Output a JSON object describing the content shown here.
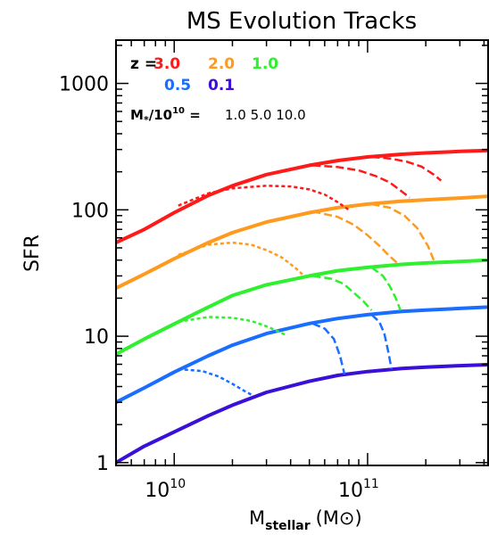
{
  "chart_data": {
    "type": "line",
    "title": "MS Evolution Tracks",
    "xlabel_main": "M",
    "xlabel_sub": "stellar",
    "xlabel_unit": "(M",
    "xlabel_close": ")",
    "ylabel": "SFR",
    "x_scale": "log",
    "y_scale": "log",
    "xlim": [
      5000000000.0,
      420000000000.0
    ],
    "ylim": [
      0.95,
      2200
    ],
    "x_ticks": [
      {
        "value": 10000000000.0,
        "base": "10",
        "exp": "10"
      },
      {
        "value": 100000000000.0,
        "base": "10",
        "exp": "11"
      }
    ],
    "y_ticks": [
      {
        "value": 1,
        "label": "1"
      },
      {
        "value": 10,
        "label": "10"
      },
      {
        "value": 100,
        "label": "100"
      },
      {
        "value": 1000,
        "label": "1000"
      }
    ],
    "legend": {
      "z_prefix": "z =",
      "redshifts": [
        {
          "label": "3.0",
          "color": "#ff1a1a"
        },
        {
          "label": "2.0",
          "color": "#ff9a1e"
        },
        {
          "label": "1.0",
          "color": "#2ef02e"
        },
        {
          "label": "0.5",
          "color": "#1a6eff"
        },
        {
          "label": "0.1",
          "color": "#3a10d8"
        }
      ],
      "mass_prefix_main": "M",
      "mass_prefix_sub": "*",
      "mass_prefix_rest": "/10",
      "mass_prefix_exp": "10",
      "mass_prefix_eq": " =",
      "mass_values": "1.0  5.0  10.0"
    },
    "series": [
      {
        "z": "3.0",
        "color": "#ff1a1a",
        "style": "solid",
        "x": [
          5000000000.0,
          7000000000.0,
          10000000000.0,
          15000000000.0,
          20000000000.0,
          30000000000.0,
          50000000000.0,
          70000000000.0,
          100000000000.0,
          150000000000.0,
          200000000000.0,
          300000000000.0,
          420000000000.0
        ],
        "y": [
          55,
          70,
          95,
          130,
          155,
          190,
          225,
          245,
          262,
          275,
          282,
          290,
          295
        ]
      },
      {
        "z": "2.0",
        "color": "#ff9a1e",
        "style": "solid",
        "x": [
          5000000000.0,
          7000000000.0,
          10000000000.0,
          15000000000.0,
          20000000000.0,
          30000000000.0,
          50000000000.0,
          70000000000.0,
          100000000000.0,
          150000000000.0,
          200000000000.0,
          300000000000.0,
          420000000000.0
        ],
        "y": [
          24,
          31,
          41,
          55,
          66,
          80,
          95,
          104,
          111,
          117,
          120,
          124,
          128
        ]
      },
      {
        "z": "1.0",
        "color": "#2ef02e",
        "style": "solid",
        "x": [
          5000000000.0,
          7000000000.0,
          10000000000.0,
          15000000000.0,
          20000000000.0,
          30000000000.0,
          50000000000.0,
          70000000000.0,
          100000000000.0,
          150000000000.0,
          200000000000.0,
          300000000000.0,
          420000000000.0
        ],
        "y": [
          7.2,
          9.5,
          12.5,
          17,
          21,
          25.5,
          30,
          33,
          35,
          37,
          38,
          39,
          40
        ]
      },
      {
        "z": "0.5",
        "color": "#1a6eff",
        "style": "solid",
        "x": [
          5000000000.0,
          7000000000.0,
          10000000000.0,
          15000000000.0,
          20000000000.0,
          30000000000.0,
          50000000000.0,
          70000000000.0,
          100000000000.0,
          150000000000.0,
          200000000000.0,
          300000000000.0,
          420000000000.0
        ],
        "y": [
          3.0,
          3.9,
          5.2,
          7.0,
          8.5,
          10.5,
          12.6,
          13.8,
          14.8,
          15.7,
          16.1,
          16.6,
          17
        ]
      },
      {
        "z": "0.1",
        "color": "#3a10d8",
        "style": "solid",
        "x": [
          5000000000.0,
          7000000000.0,
          10000000000.0,
          15000000000.0,
          20000000000.0,
          30000000000.0,
          50000000000.0,
          70000000000.0,
          100000000000.0,
          150000000000.0,
          200000000000.0,
          300000000000.0,
          420000000000.0
        ],
        "y": [
          1.0,
          1.35,
          1.75,
          2.35,
          2.85,
          3.6,
          4.4,
          4.9,
          5.25,
          5.55,
          5.7,
          5.85,
          5.95
        ]
      },
      {
        "z": "3.0",
        "color": "#ff1a1a",
        "style": "dotted",
        "x": [
          10500000000.0,
          15000000000.0,
          20000000000.0,
          30000000000.0,
          40000000000.0,
          50000000000.0,
          60000000000.0,
          70000000000.0,
          80000000000.0
        ],
        "y": [
          108,
          135,
          148,
          155,
          153,
          145,
          132,
          115,
          100
        ]
      },
      {
        "z": "3.0",
        "color": "#ff1a1a",
        "style": "dashed",
        "x": [
          52000000000.0,
          70000000000.0,
          90000000000.0,
          110000000000.0,
          130000000000.0,
          150000000000.0,
          165000000000.0
        ],
        "y": [
          225,
          218,
          205,
          185,
          165,
          140,
          125
        ]
      },
      {
        "z": "3.0",
        "color": "#ff1a1a",
        "style": "dashed",
        "x": [
          105000000000.0,
          130000000000.0,
          160000000000.0,
          190000000000.0,
          220000000000.0,
          240000000000.0
        ],
        "y": [
          262,
          255,
          240,
          220,
          190,
          170
        ]
      },
      {
        "z": "2.0",
        "color": "#ff9a1e",
        "style": "dotted",
        "x": [
          10500000000.0,
          15000000000.0,
          20000000000.0,
          25000000000.0,
          30000000000.0,
          36000000000.0,
          42000000000.0,
          47000000000.0
        ],
        "y": [
          44,
          53,
          55,
          53,
          48,
          42,
          35,
          30
        ]
      },
      {
        "z": "2.0",
        "color": "#ff9a1e",
        "style": "dashed",
        "x": [
          52000000000.0,
          70000000000.0,
          85000000000.0,
          100000000000.0,
          115000000000.0,
          130000000000.0,
          145000000000.0
        ],
        "y": [
          97,
          88,
          76,
          63,
          52,
          43,
          37
        ]
      },
      {
        "z": "2.0",
        "color": "#ff9a1e",
        "style": "dashed",
        "x": [
          105000000000.0,
          130000000000.0,
          155000000000.0,
          180000000000.0,
          205000000000.0,
          220000000000.0
        ],
        "y": [
          111,
          104,
          90,
          72,
          52,
          40
        ]
      },
      {
        "z": "1.0",
        "color": "#2ef02e",
        "style": "dotted",
        "x": [
          10500000000.0,
          15000000000.0,
          20000000000.0,
          25000000000.0,
          30000000000.0,
          35000000000.0,
          38000000000.0
        ],
        "y": [
          13,
          14.2,
          14,
          13.2,
          12,
          10.8,
          10.2
        ]
      },
      {
        "z": "1.0",
        "color": "#2ef02e",
        "style": "dashed",
        "x": [
          52000000000.0,
          65000000000.0,
          75000000000.0,
          85000000000.0,
          95000000000.0,
          105000000000.0
        ],
        "y": [
          30,
          28.5,
          26,
          22,
          19,
          16
        ]
      },
      {
        "z": "1.0",
        "color": "#2ef02e",
        "style": "dashed",
        "x": [
          105000000000.0,
          120000000000.0,
          130000000000.0,
          140000000000.0,
          148000000000.0
        ],
        "y": [
          35,
          30,
          25,
          20,
          16
        ]
      },
      {
        "z": "0.5",
        "color": "#1a6eff",
        "style": "dotted",
        "x": [
          10500000000.0,
          14000000000.0,
          17000000000.0,
          20000000000.0,
          23000000000.0,
          25500000000.0
        ],
        "y": [
          5.5,
          5.3,
          4.8,
          4.2,
          3.7,
          3.4
        ]
      },
      {
        "z": "0.5",
        "color": "#1a6eff",
        "style": "dashed",
        "x": [
          52000000000.0,
          60000000000.0,
          67000000000.0,
          72000000000.0,
          76000000000.0
        ],
        "y": [
          12.6,
          11.5,
          9.5,
          7.0,
          5.0
        ]
      },
      {
        "z": "0.5",
        "color": "#1a6eff",
        "style": "dashed",
        "x": [
          105000000000.0,
          115000000000.0,
          122000000000.0,
          128000000000.0,
          133000000000.0
        ],
        "y": [
          14.8,
          13,
          10.5,
          7.5,
          5.5
        ]
      }
    ]
  }
}
